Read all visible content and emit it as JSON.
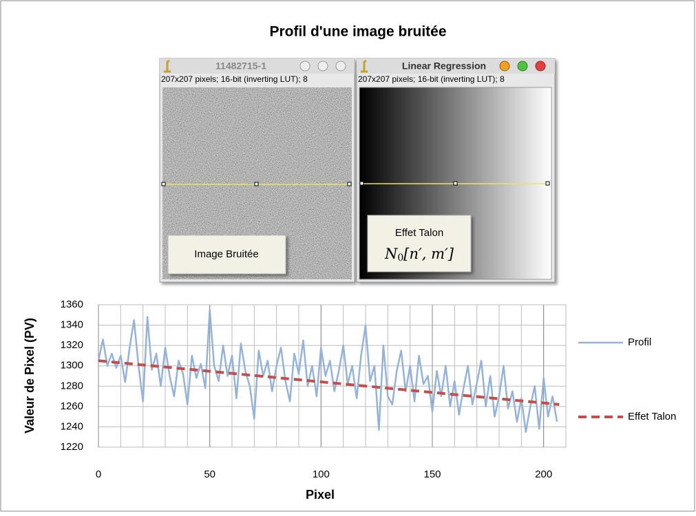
{
  "chart_data": {
    "type": "line",
    "title": "Profil d'une image bruitée",
    "xlabel": "Pixel",
    "ylabel": "Valeur de Pixel (PV)",
    "xlim": [
      0,
      210
    ],
    "xticks": [
      0,
      50,
      100,
      150,
      200
    ],
    "xminorticks": [
      0,
      10,
      20,
      30,
      40,
      50,
      60,
      70,
      80,
      90,
      100,
      110,
      120,
      130,
      140,
      150,
      160,
      170,
      180,
      190,
      200,
      210
    ],
    "ylim": [
      1220,
      1360
    ],
    "yticks": [
      1220,
      1240,
      1260,
      1280,
      1300,
      1320,
      1340,
      1360
    ],
    "grid": true,
    "legend": "right",
    "series": [
      {
        "name": "Profil",
        "color": "#95b3d7",
        "dash": false,
        "x": [
          0,
          2,
          4,
          6,
          8,
          10,
          12,
          14,
          16,
          18,
          20,
          22,
          24,
          26,
          28,
          30,
          32,
          34,
          36,
          38,
          40,
          42,
          44,
          46,
          48,
          50,
          52,
          54,
          56,
          58,
          60,
          62,
          64,
          66,
          68,
          70,
          72,
          74,
          76,
          78,
          80,
          82,
          84,
          86,
          88,
          90,
          92,
          94,
          96,
          98,
          100,
          102,
          104,
          106,
          108,
          110,
          112,
          114,
          116,
          118,
          120,
          122,
          124,
          126,
          128,
          130,
          132,
          134,
          136,
          138,
          140,
          142,
          144,
          146,
          148,
          150,
          152,
          154,
          156,
          158,
          160,
          162,
          164,
          166,
          168,
          170,
          172,
          174,
          176,
          178,
          180,
          182,
          184,
          186,
          188,
          190,
          192,
          194,
          196,
          198,
          200,
          202,
          204,
          206
        ],
        "values": [
          1305,
          1326,
          1300,
          1312,
          1298,
          1310,
          1284,
          1318,
          1345,
          1300,
          1265,
          1348,
          1296,
          1312,
          1280,
          1318,
          1290,
          1270,
          1305,
          1292,
          1262,
          1310,
          1288,
          1302,
          1278,
          1355,
          1300,
          1285,
          1320,
          1290,
          1310,
          1268,
          1322,
          1295,
          1280,
          1248,
          1315,
          1290,
          1305,
          1275,
          1300,
          1318,
          1285,
          1265,
          1312,
          1292,
          1325,
          1280,
          1300,
          1270,
          1318,
          1290,
          1305,
          1275,
          1295,
          1320,
          1282,
          1300,
          1268,
          1310,
          1340,
          1285,
          1300,
          1237,
          1320,
          1270,
          1262,
          1295,
          1315,
          1275,
          1300,
          1265,
          1310,
          1282,
          1290,
          1255,
          1295,
          1270,
          1300,
          1260,
          1285,
          1252,
          1278,
          1300,
          1262,
          1283,
          1305,
          1260,
          1290,
          1250,
          1270,
          1300,
          1258,
          1275,
          1245,
          1268,
          1235,
          1260,
          1280,
          1238,
          1288,
          1250,
          1270,
          1245
        ]
      },
      {
        "name": "Effet Talon",
        "color": "#c0504d",
        "dash": true,
        "x": [
          0,
          207
        ],
        "values": [
          1305,
          1262
        ]
      }
    ]
  },
  "windows": [
    {
      "title": "11482715-1",
      "info": "207x207 pixels; 16-bit (inverting LUT); 8",
      "label": "Image Bruitée"
    },
    {
      "title": "Linear Regression",
      "info": "207x207 pixels; 16-bit (inverting LUT); 8",
      "label": "Effet Talon",
      "formula": {
        "base": "N",
        "sub": "0",
        "args": "[n′, m′]"
      }
    }
  ]
}
